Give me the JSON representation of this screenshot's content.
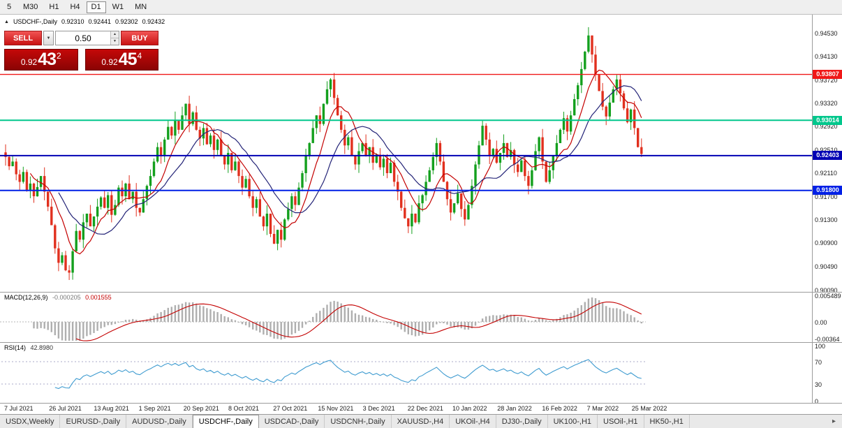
{
  "toolbar": {
    "timeframes": [
      {
        "label": "5",
        "active": false
      },
      {
        "label": "M30",
        "active": false
      },
      {
        "label": "H1",
        "active": false
      },
      {
        "label": "H4",
        "active": false
      },
      {
        "label": "D1",
        "active": true
      },
      {
        "label": "W1",
        "active": false
      },
      {
        "label": "MN",
        "active": false
      }
    ]
  },
  "chart_header": {
    "collapse_icon": "▲",
    "symbol": "USDCHF-,Daily",
    "open": "0.92310",
    "high": "0.92441",
    "low": "0.92302",
    "close": "0.92432"
  },
  "trade_panel": {
    "sell_label": "SELL",
    "buy_label": "BUY",
    "volume": "0.50",
    "dropdown_icon": "▼",
    "spin_up": "▲",
    "spin_down": "▼",
    "bid": {
      "prefix": "0.92",
      "big": "43",
      "pip": "2"
    },
    "ask": {
      "prefix": "0.92",
      "big": "45",
      "pip": "4"
    }
  },
  "levels": [
    {
      "name": "resistance-red",
      "label": "0.93807",
      "price": 0.93807,
      "color": "#F01818",
      "width": 1.4
    },
    {
      "name": "resistance-teal",
      "label": "0.93014",
      "price": 0.93014,
      "color": "#00C78C",
      "width": 2
    },
    {
      "name": "support-navy",
      "label": "0.92403",
      "price": 0.92403,
      "color": "#0000B4",
      "width": 2
    },
    {
      "name": "support-blue",
      "label": "0.91800",
      "price": 0.918,
      "color": "#0020E6",
      "width": 2
    }
  ],
  "price_axis": {
    "labels": [
      "0.94530",
      "0.94130",
      "0.93720",
      "0.93320",
      "0.92920",
      "0.92510",
      "0.92110",
      "0.91700",
      "0.91300",
      "0.90900",
      "0.90490",
      "0.90090"
    ]
  },
  "indicators": {
    "macd": {
      "label": "MACD(12,26,9)",
      "main_value": "-0.000205",
      "signal_value": "0.001555",
      "axis_labels": [
        "0.005489",
        "0.00",
        "-0.00364"
      ]
    },
    "rsi": {
      "label": "RSI(14)",
      "value": "42.8980",
      "axis_labels": [
        "100",
        "70",
        "30",
        "0"
      ],
      "guides": [
        70,
        30
      ]
    }
  },
  "tabs": {
    "scroll_icon": "▸",
    "items": [
      {
        "label": "USDX,Weekly",
        "active": false
      },
      {
        "label": "EURUSD-,Daily",
        "active": false
      },
      {
        "label": "AUDUSD-,Daily",
        "active": false
      },
      {
        "label": "USDCHF-,Daily",
        "active": true
      },
      {
        "label": "USDCAD-,Daily",
        "active": false
      },
      {
        "label": "USDCNH-,Daily",
        "active": false
      },
      {
        "label": "XAUUSD-,H4",
        "active": false
      },
      {
        "label": "UKOil-,H4",
        "active": false
      },
      {
        "label": "DJ30-,Daily",
        "active": false
      },
      {
        "label": "UK100-,H1",
        "active": false
      },
      {
        "label": "USOil-,H1",
        "active": false
      },
      {
        "label": "HK50-,H1",
        "active": false
      }
    ]
  },
  "colors": {
    "candle_up": "#14A01E",
    "candle_down": "#E1301E",
    "ma_fast": "#C40000",
    "ma_slow": "#232377",
    "macd_bars": "#AFAFAF",
    "macd_signal": "#C40000",
    "rsi_line": "#3E9BD0",
    "rsi_guides": "#A9A9C9"
  },
  "chart_data": {
    "type": "candlestick",
    "symbol": "USDCHF-",
    "timeframe": "Daily",
    "ohlc_current": {
      "open": 0.9231,
      "high": 0.92441,
      "low": 0.92302,
      "close": 0.92432
    },
    "ylim": [
      0.9006,
      0.9484
    ],
    "x_tick_labels": [
      "7 Jul 2021",
      "26 Jul 2021",
      "13 Aug 2021",
      "1 Sep 2021",
      "20 Sep 2021",
      "8 Oct 2021",
      "27 Oct 2021",
      "15 Nov 2021",
      "3 Dec 2021",
      "22 Dec 2021",
      "10 Jan 2022",
      "28 Jan 2022",
      "16 Feb 2022",
      "7 Mar 2022",
      "25 Mar 2022"
    ],
    "closes": [
      0.9238,
      0.9222,
      0.923,
      0.9208,
      0.9195,
      0.9212,
      0.918,
      0.9192,
      0.917,
      0.9186,
      0.9205,
      0.9178,
      0.9152,
      0.912,
      0.908,
      0.9055,
      0.9068,
      0.9042,
      0.9038,
      0.9075,
      0.911,
      0.9095,
      0.9125,
      0.914,
      0.9118,
      0.9135,
      0.9152,
      0.9168,
      0.915,
      0.9172,
      0.9138,
      0.9155,
      0.9185,
      0.917,
      0.9192,
      0.9165,
      0.9178,
      0.915,
      0.9142,
      0.9165,
      0.9188,
      0.9205,
      0.923,
      0.9255,
      0.924,
      0.9268,
      0.929,
      0.9275,
      0.9302,
      0.9285,
      0.931,
      0.933,
      0.9295,
      0.9315,
      0.9285,
      0.927,
      0.9288,
      0.926,
      0.9275,
      0.925,
      0.9268,
      0.924,
      0.9225,
      0.9245,
      0.9215,
      0.923,
      0.9205,
      0.9185,
      0.92,
      0.917,
      0.915,
      0.9165,
      0.9135,
      0.9118,
      0.914,
      0.9105,
      0.9088,
      0.9112,
      0.9095,
      0.913,
      0.9148,
      0.917,
      0.9155,
      0.9185,
      0.921,
      0.924,
      0.9262,
      0.9288,
      0.931,
      0.9295,
      0.933,
      0.9355,
      0.9372,
      0.934,
      0.931,
      0.9285,
      0.9258,
      0.9272,
      0.924,
      0.9225,
      0.9248,
      0.9262,
      0.924,
      0.9255,
      0.9228,
      0.9242,
      0.922,
      0.9235,
      0.921,
      0.9228,
      0.9195,
      0.9178,
      0.915,
      0.9132,
      0.9118,
      0.914,
      0.9125,
      0.9158,
      0.9172,
      0.9195,
      0.9215,
      0.9238,
      0.9262,
      0.923,
      0.9195,
      0.9165,
      0.9142,
      0.9158,
      0.9175,
      0.9148,
      0.913,
      0.9155,
      0.9188,
      0.9225,
      0.9258,
      0.9292,
      0.9268,
      0.924,
      0.9252,
      0.9228,
      0.9245,
      0.9262,
      0.9238,
      0.925,
      0.9225,
      0.9212,
      0.9232,
      0.9205,
      0.9188,
      0.9215,
      0.9248,
      0.9272,
      0.923,
      0.9195,
      0.9215,
      0.924,
      0.9262,
      0.9285,
      0.9305,
      0.9282,
      0.931,
      0.9338,
      0.9362,
      0.939,
      0.942,
      0.9448,
      0.9415,
      0.938,
      0.9352,
      0.9325,
      0.9308,
      0.9332,
      0.9355,
      0.9372,
      0.9348,
      0.9322,
      0.9298,
      0.932,
      0.9288,
      0.9255,
      0.92432
    ],
    "overlays": {
      "horizontal_lines": [
        0.93807,
        0.93014,
        0.92403,
        0.918
      ],
      "moving_averages": [
        {
          "period": 8,
          "color": "#C40000"
        },
        {
          "period": 16,
          "color": "#232377"
        }
      ]
    },
    "indicator_panels": [
      {
        "type": "MACD",
        "params": [
          12,
          26,
          9
        ],
        "current": [
          -0.000205,
          0.001555
        ],
        "axis_range": [
          -0.00364,
          0.005489
        ]
      },
      {
        "type": "RSI",
        "params": [
          14
        ],
        "current": 42.898,
        "guides": [
          70,
          30
        ],
        "axis_range": [
          0,
          100
        ]
      }
    ]
  }
}
